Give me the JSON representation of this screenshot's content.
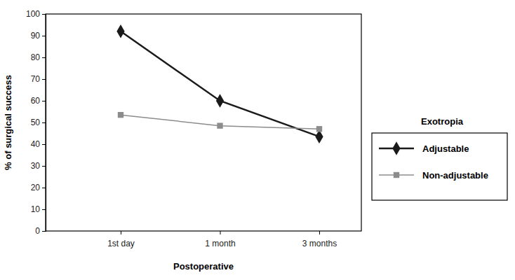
{
  "chart_data": {
    "type": "line",
    "x_label": "Postoperative",
    "y_label": "% of surgical success",
    "legend_title": "Exotropia",
    "categories": [
      "1st day",
      "1 month",
      "3 months"
    ],
    "series": [
      {
        "name": "Adjustable",
        "color": "#1a1a1a",
        "marker": "diamond",
        "line_style": "solid",
        "values": [
          92,
          60,
          43.5
        ]
      },
      {
        "name": "Non-adjustable",
        "color": "#8c8c8c",
        "marker": "square",
        "line_style": "solid",
        "values": [
          53.5,
          48.5,
          47
        ]
      }
    ],
    "ylim": [
      0,
      100
    ],
    "yticks": [
      0,
      10,
      20,
      30,
      40,
      50,
      60,
      70,
      80,
      90,
      100
    ],
    "grid": false,
    "legend": "right"
  }
}
